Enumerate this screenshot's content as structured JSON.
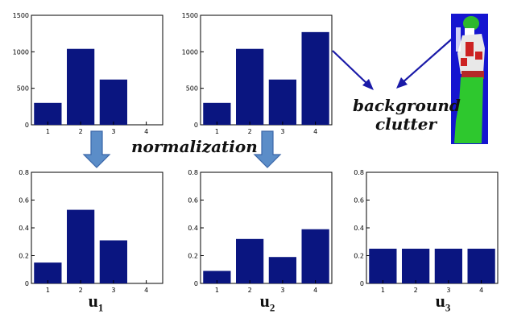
{
  "colors": {
    "bar": "#0a1580",
    "axis": "#000000",
    "arrow_fill": "#5b8dc8",
    "arrow_stroke": "#3a66a8",
    "pointer": "#1a1aa8"
  },
  "annotations": {
    "normalization": "normalization",
    "background_line1": "background",
    "background_line2": "clutter"
  },
  "chart_data": [
    {
      "type": "bar",
      "categories": [
        "1",
        "2",
        "3",
        "4"
      ],
      "values": [
        300,
        1040,
        620,
        0
      ],
      "ylim": [
        0,
        1500
      ],
      "yticks": [
        "0",
        "500",
        "1000",
        "1500"
      ],
      "xlabel": "",
      "ylabel": ""
    },
    {
      "type": "bar",
      "categories": [
        "1",
        "2",
        "3",
        "4"
      ],
      "values": [
        300,
        1040,
        620,
        1270
      ],
      "ylim": [
        0,
        1500
      ],
      "yticks": [
        "0",
        "500",
        "1000",
        "1500"
      ],
      "xlabel": "",
      "ylabel": ""
    },
    {
      "type": "bar",
      "categories": [
        "1",
        "2",
        "3",
        "4"
      ],
      "values": [
        0.15,
        0.53,
        0.31,
        0
      ],
      "ylim": [
        0,
        0.8
      ],
      "yticks": [
        "0",
        "0.2",
        "0.4",
        "0.6",
        "0.8"
      ],
      "xlabel": "",
      "ylabel": "",
      "label": "u",
      "label_sub": "1"
    },
    {
      "type": "bar",
      "categories": [
        "1",
        "2",
        "3",
        "4"
      ],
      "values": [
        0.09,
        0.32,
        0.19,
        0.39
      ],
      "ylim": [
        0,
        0.8
      ],
      "yticks": [
        "0",
        "0.2",
        "0.4",
        "0.6",
        "0.8"
      ],
      "xlabel": "",
      "ylabel": "",
      "label": "u",
      "label_sub": "2"
    },
    {
      "type": "bar",
      "categories": [
        "1",
        "2",
        "3",
        "4"
      ],
      "values": [
        0.25,
        0.25,
        0.25,
        0.25
      ],
      "ylim": [
        0,
        0.8
      ],
      "yticks": [
        "0",
        "0.2",
        "0.4",
        "0.6",
        "0.8"
      ],
      "xlabel": "",
      "ylabel": "",
      "label": "u",
      "label_sub": "3"
    }
  ]
}
